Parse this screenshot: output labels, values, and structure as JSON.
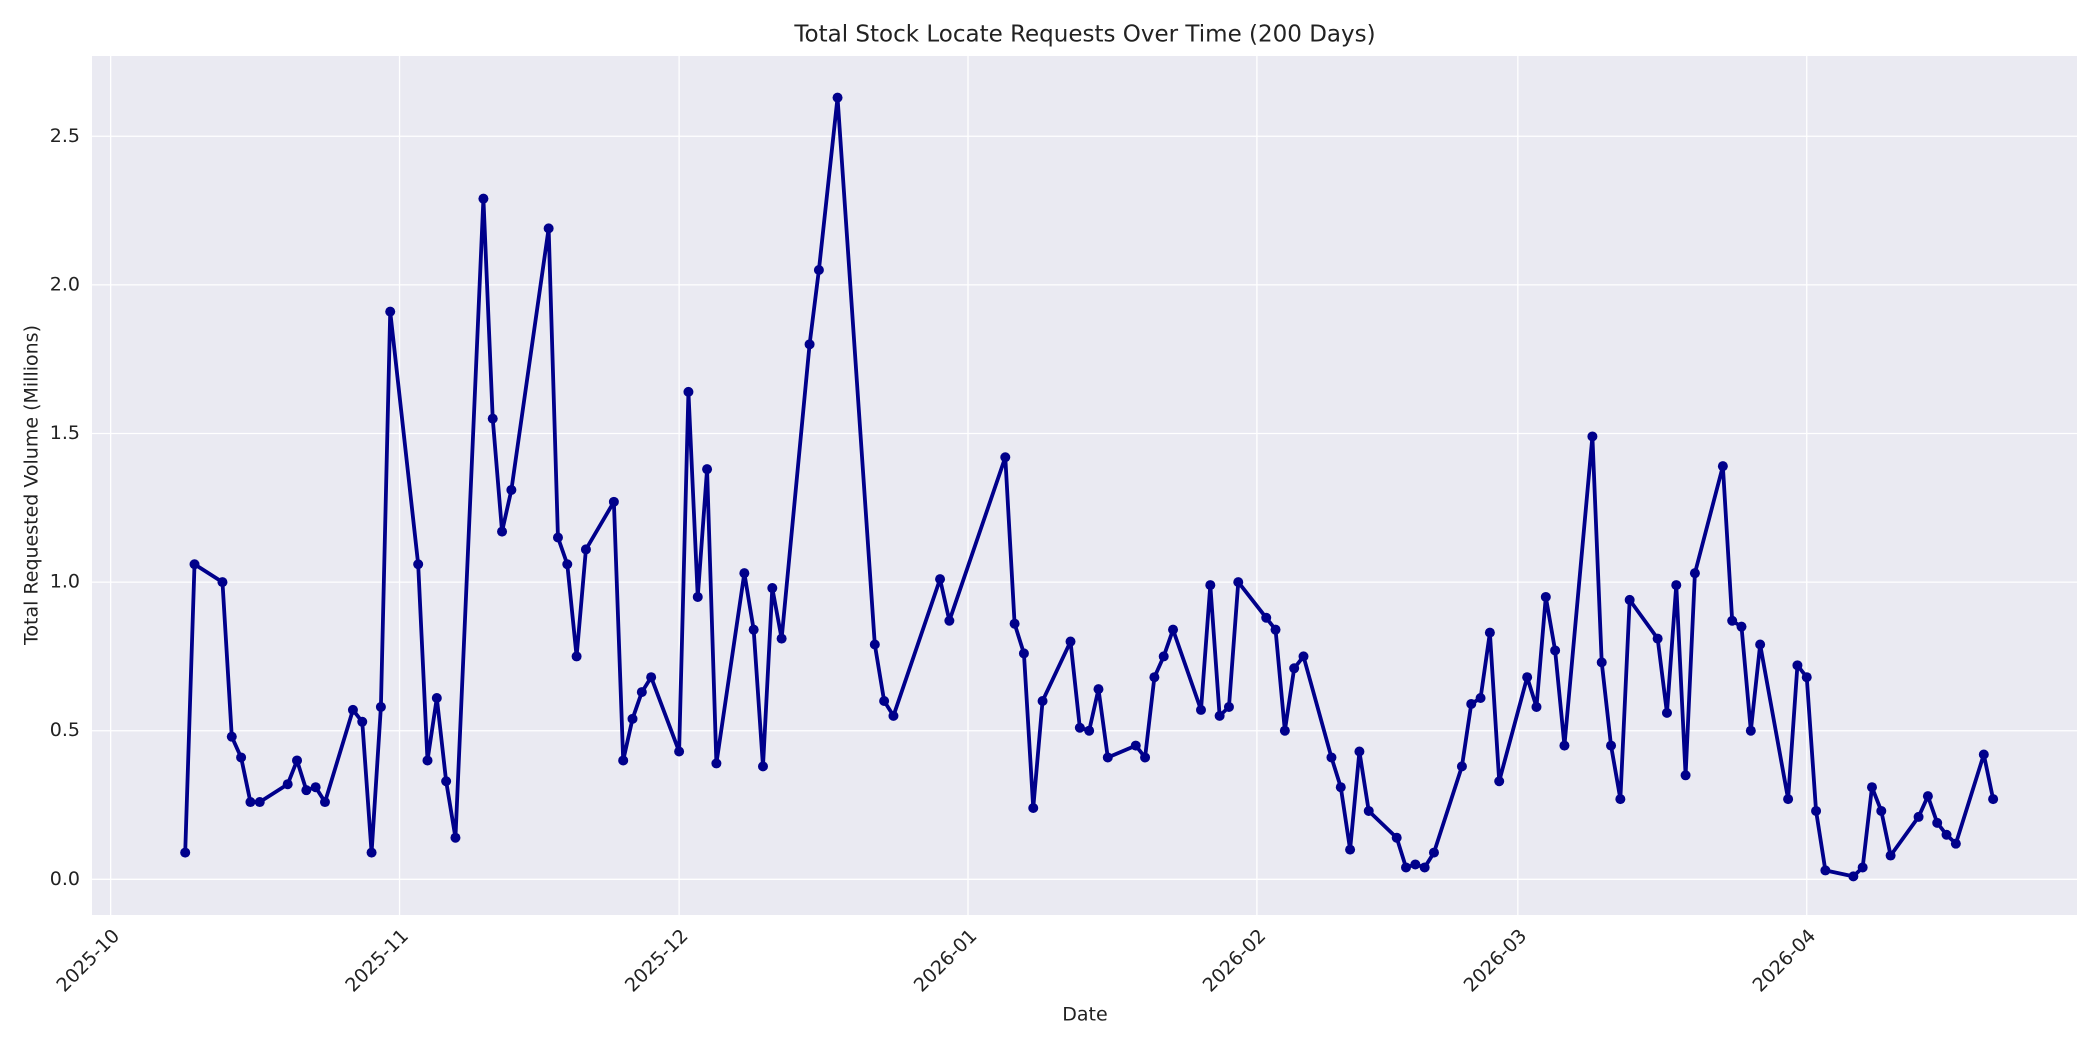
{
  "chart_data": {
    "type": "line",
    "title": "Total Stock Locate Requests Over Time (200 Days)",
    "xlabel": "Date",
    "ylabel": "Total Requested Volume (Millions)",
    "color": "#00008b",
    "grid": true,
    "x": [
      "2025-10-09",
      "2025-10-10",
      "2025-10-13",
      "2025-10-14",
      "2025-10-15",
      "2025-10-16",
      "2025-10-17",
      "2025-10-20",
      "2025-10-21",
      "2025-10-22",
      "2025-10-23",
      "2025-10-24",
      "2025-10-27",
      "2025-10-28",
      "2025-10-29",
      "2025-10-30",
      "2025-10-31",
      "2025-11-03",
      "2025-11-04",
      "2025-11-05",
      "2025-11-06",
      "2025-11-07",
      "2025-11-10",
      "2025-11-11",
      "2025-11-12",
      "2025-11-13",
      "2025-11-17",
      "2025-11-18",
      "2025-11-19",
      "2025-11-20",
      "2025-11-21",
      "2025-11-24",
      "2025-11-25",
      "2025-11-26",
      "2025-11-27",
      "2025-11-28",
      "2025-12-01",
      "2025-12-02",
      "2025-12-03",
      "2025-12-04",
      "2025-12-05",
      "2025-12-08",
      "2025-12-09",
      "2025-12-10",
      "2025-12-11",
      "2025-12-12",
      "2025-12-15",
      "2025-12-16",
      "2025-12-18",
      "2025-12-22",
      "2025-12-23",
      "2025-12-24",
      "2025-12-29",
      "2025-12-30",
      "2026-01-05",
      "2026-01-06",
      "2026-01-07",
      "2026-01-08",
      "2026-01-09",
      "2026-01-12",
      "2026-01-13",
      "2026-01-14",
      "2026-01-15",
      "2026-01-16",
      "2026-01-19",
      "2026-01-20",
      "2026-01-21",
      "2026-01-22",
      "2026-01-23",
      "2026-01-26",
      "2026-01-27",
      "2026-01-28",
      "2026-01-29",
      "2026-01-30",
      "2026-02-02",
      "2026-02-03",
      "2026-02-04",
      "2026-02-05",
      "2026-02-06",
      "2026-02-09",
      "2026-02-10",
      "2026-02-11",
      "2026-02-12",
      "2026-02-13",
      "2026-02-16",
      "2026-02-17",
      "2026-02-18",
      "2026-02-19",
      "2026-02-20",
      "2026-02-23",
      "2026-02-24",
      "2026-02-25",
      "2026-02-26",
      "2026-02-27",
      "2026-03-02",
      "2026-03-03",
      "2026-03-04",
      "2026-03-05",
      "2026-03-06",
      "2026-03-09",
      "2026-03-10",
      "2026-03-11",
      "2026-03-12",
      "2026-03-13",
      "2026-03-16",
      "2026-03-17",
      "2026-03-18",
      "2026-03-19",
      "2026-03-20",
      "2026-03-23",
      "2026-03-24",
      "2026-03-25",
      "2026-03-26",
      "2026-03-27",
      "2026-03-30",
      "2026-03-31",
      "2026-04-01",
      "2026-04-02",
      "2026-04-03",
      "2026-04-06",
      "2026-04-07",
      "2026-04-08",
      "2026-04-09",
      "2026-04-10",
      "2026-04-13",
      "2026-04-14",
      "2026-04-15",
      "2026-04-16",
      "2026-04-17",
      "2026-04-20",
      "2026-04-21"
    ],
    "values": [
      0.09,
      1.06,
      1.0,
      0.48,
      0.41,
      0.26,
      0.26,
      0.32,
      0.4,
      0.3,
      0.31,
      0.26,
      0.57,
      0.53,
      0.09,
      0.58,
      1.91,
      1.06,
      0.4,
      0.61,
      0.33,
      0.14,
      2.29,
      1.55,
      1.17,
      1.31,
      2.19,
      1.15,
      1.06,
      0.75,
      1.11,
      1.27,
      0.4,
      0.54,
      0.63,
      0.68,
      0.43,
      1.64,
      0.95,
      1.38,
      0.39,
      1.03,
      0.84,
      0.38,
      0.98,
      0.81,
      1.8,
      2.05,
      2.63,
      0.79,
      0.6,
      0.55,
      1.01,
      0.87,
      1.42,
      0.86,
      0.76,
      0.24,
      0.6,
      0.8,
      0.51,
      0.5,
      0.64,
      0.41,
      0.45,
      0.41,
      0.68,
      0.75,
      0.84,
      0.57,
      0.99,
      0.55,
      0.58,
      1.0,
      0.88,
      0.84,
      0.5,
      0.71,
      0.75,
      0.41,
      0.31,
      0.1,
      0.43,
      0.23,
      0.14,
      0.04,
      0.05,
      0.04,
      0.09,
      0.38,
      0.59,
      0.61,
      0.83,
      0.33,
      0.68,
      0.58,
      0.95,
      0.77,
      0.45,
      1.49,
      0.73,
      0.45,
      0.27,
      0.94,
      0.81,
      0.56,
      0.99,
      0.35,
      1.03,
      1.39,
      0.87,
      0.85,
      0.5,
      0.79,
      0.27,
      0.72,
      0.68,
      0.23,
      0.03,
      0.01,
      0.04,
      0.31,
      0.23,
      0.08,
      0.21,
      0.28,
      0.19,
      0.15,
      0.12,
      0.42,
      0.27
    ],
    "xlim": [
      "2025-09-29",
      "2026-04-30"
    ],
    "xticks": [
      {
        "value": "2025-10-01",
        "label": "2025-10"
      },
      {
        "value": "2025-11-01",
        "label": "2025-11"
      },
      {
        "value": "2025-12-01",
        "label": "2025-12"
      },
      {
        "value": "2026-01-01",
        "label": "2026-01"
      },
      {
        "value": "2026-02-01",
        "label": "2026-02"
      },
      {
        "value": "2026-03-01",
        "label": "2026-03"
      },
      {
        "value": "2026-04-01",
        "label": "2026-04"
      }
    ],
    "ylim": [
      -0.12,
      2.77
    ],
    "yticks": [
      {
        "value": 0,
        "label": "0.0"
      },
      {
        "value": 0.5,
        "label": "0.5"
      },
      {
        "value": 1,
        "label": "1.0"
      },
      {
        "value": 1.5,
        "label": "1.5"
      },
      {
        "value": 2,
        "label": "2.0"
      },
      {
        "value": 2.5,
        "label": "2.5"
      }
    ]
  }
}
